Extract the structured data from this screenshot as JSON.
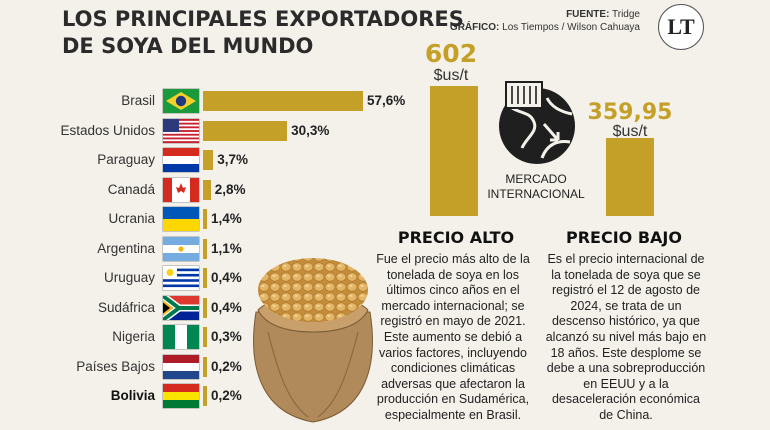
{
  "header": {
    "title_line1": "LOS PRINCIPALES EXPORTADORES",
    "title_line2": "DE SOYA DEL MUNDO",
    "source_label": "FUENTE:",
    "source_value": "Tridge",
    "graphic_label": "GRÁFICO:",
    "graphic_value": "Los Tiempos / Wilson Cahuaya",
    "logo_text": "LT"
  },
  "chart_data": [
    {
      "type": "bar",
      "orientation": "horizontal",
      "categories": [
        "Brasil",
        "Estados Unidos",
        "Paraguay",
        "Canadá",
        "Ucrania",
        "Argentina",
        "Uruguay",
        "Sudáfrica",
        "Nigeria",
        "Países Bajos",
        "Bolivia"
      ],
      "values": [
        57.6,
        30.3,
        3.7,
        2.8,
        1.4,
        1.1,
        0.4,
        0.4,
        0.3,
        0.2,
        0.2
      ],
      "value_labels": [
        "57,6%",
        "30,3%",
        "3,7%",
        "2,8%",
        "1,4%",
        "1,1%",
        "0,4%",
        "0,4%",
        "0,3%",
        "0,2%",
        "0,2%"
      ],
      "highlight": "Bolivia",
      "bar_color": "#c5a028"
    },
    {
      "type": "bar",
      "categories": [
        "PRECIO ALTO",
        "PRECIO BAJO"
      ],
      "values": [
        602,
        359.95
      ],
      "value_labels": [
        "602",
        "359,95"
      ],
      "unit": "$us/t",
      "bar_color": "#c5a028"
    }
  ],
  "market_label": "MERCADO INTERNACIONAL",
  "price_high": {
    "heading": "PRECIO ALTO",
    "text": "Fue el precio más alto de la tonelada de soya en los últimos cinco años en el mercado internacional; se registró en mayo de 2021. Este aumento se debió a varios factores, incluyendo condiciones climáticas adversas que afectaron la producción en Sudamérica, especialmente en Brasil."
  },
  "price_low": {
    "heading": "PRECIO BAJO",
    "text": "Es el precio internacional de la tonelada de soya que se registró el 12 de agosto de 2024, se trata de un descenso histórico, ya que alcanzó su nivel más bajo en 18 años. Este desplome se debe a una sobreproducción en EEUU y a la desaceleración económica de China."
  },
  "icons": {
    "globe": "globe-container-icon",
    "sack": "soybean-sack-illustration"
  }
}
